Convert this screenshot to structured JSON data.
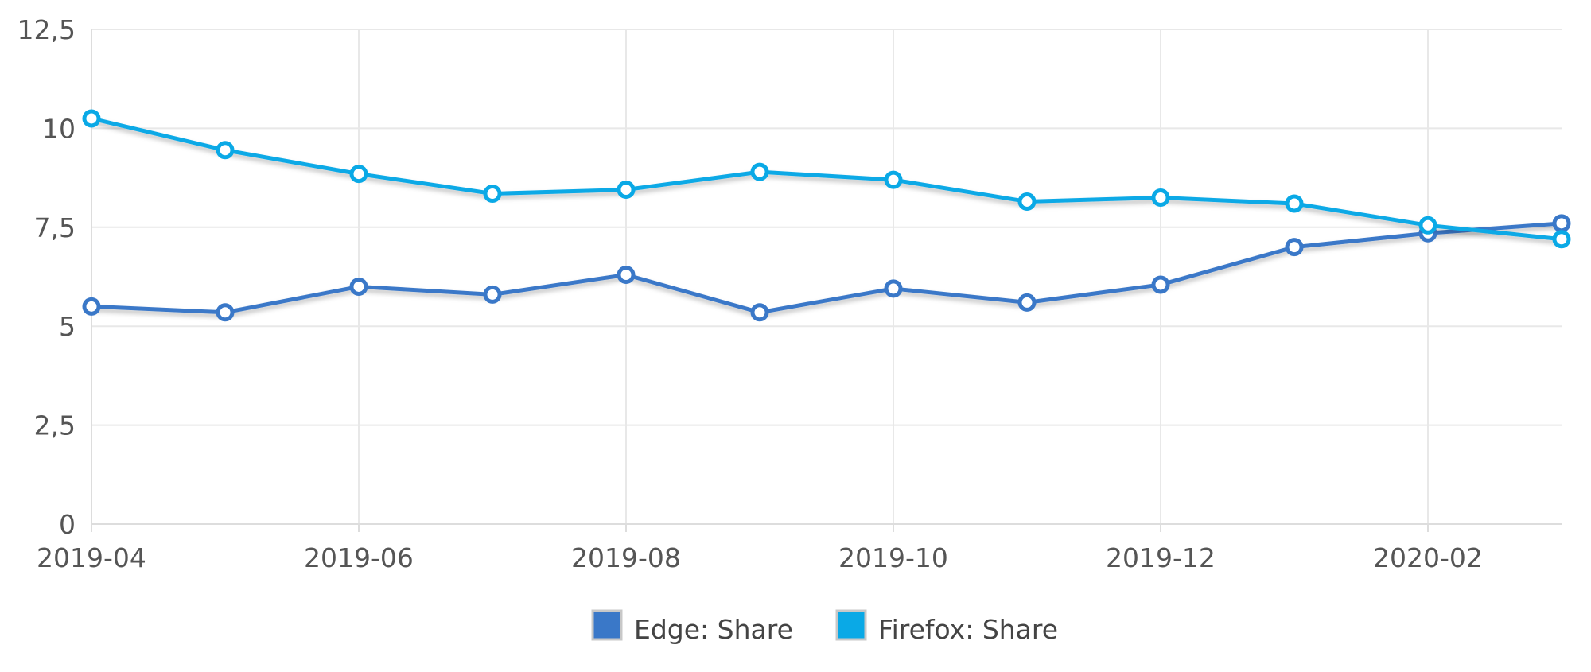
{
  "chart_data": {
    "type": "line",
    "x": [
      "2019-04",
      "2019-05",
      "2019-06",
      "2019-07",
      "2019-08",
      "2019-09",
      "2019-10",
      "2019-11",
      "2019-12",
      "2020-01",
      "2020-02",
      "2020-03"
    ],
    "x_tick_labels": [
      "2019-04",
      "2019-06",
      "2019-08",
      "2019-10",
      "2019-12",
      "2020-02"
    ],
    "y_tick_labels": [
      "0",
      "2,5",
      "5",
      "7,5",
      "10",
      "12,5"
    ],
    "y_ticks": [
      0,
      2.5,
      5,
      7.5,
      10,
      12.5
    ],
    "ylim": [
      0,
      12.5
    ],
    "grid": true,
    "legend_position": "bottom-center",
    "series": [
      {
        "name": "Edge: Share",
        "color": "#3a78c8",
        "values": [
          5.5,
          5.35,
          6.0,
          5.8,
          6.3,
          5.35,
          5.95,
          5.6,
          6.05,
          7.0,
          7.35,
          7.6
        ]
      },
      {
        "name": "Firefox: Share",
        "color": "#0aa9e6",
        "values": [
          10.25,
          9.45,
          8.85,
          8.35,
          8.45,
          8.9,
          8.7,
          8.15,
          8.25,
          8.1,
          7.55,
          7.2
        ]
      }
    ]
  }
}
